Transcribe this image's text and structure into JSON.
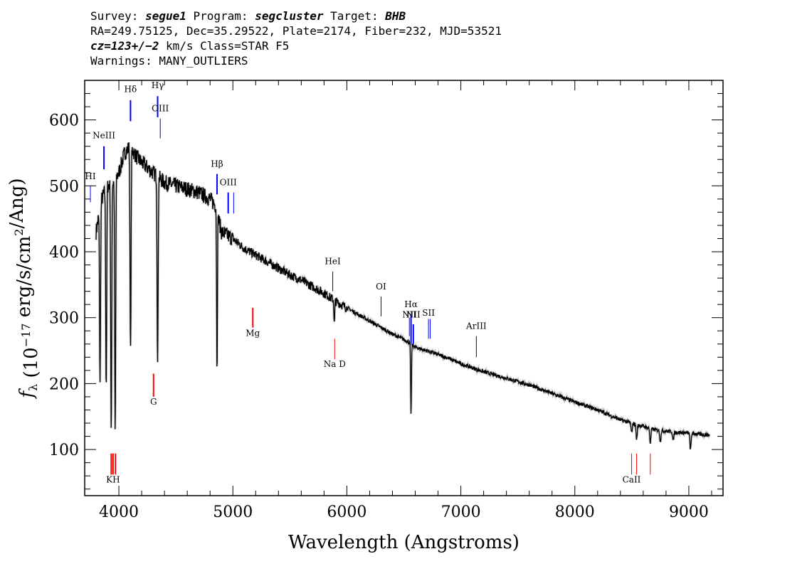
{
  "header": {
    "line1": {
      "survey_label": "Survey: ",
      "survey": "segue1",
      "program_label": " Program: ",
      "program": "segcluster",
      "target_label": " Target: ",
      "target": "BHB"
    },
    "line2": "RA=249.75125, Dec=35.29522, Plate=2174, Fiber=232, MJD=53521",
    "line3": {
      "cz": "cz=123+/−2",
      "rest": " km/s Class=STAR F5"
    },
    "line4": "Warnings: MANY_OUTLIERS"
  },
  "chart_data": {
    "type": "line",
    "xlabel": "Wavelength (Angstroms)",
    "ylabel": "f_λ (10^-17 erg/s/cm^2/Ang)",
    "xlim": [
      3700,
      9300
    ],
    "ylim": [
      30,
      660
    ],
    "xticks": [
      4000,
      5000,
      6000,
      7000,
      8000,
      9000
    ],
    "yticks": [
      100,
      200,
      300,
      400,
      500,
      600
    ],
    "series": [
      {
        "color": "#000000",
        "continuum": [
          [
            3800,
            430
          ],
          [
            3850,
            480
          ],
          [
            3900,
            500
          ],
          [
            3950,
            505
          ],
          [
            4000,
            520
          ],
          [
            4050,
            550
          ],
          [
            4100,
            560
          ],
          [
            4150,
            545
          ],
          [
            4200,
            535
          ],
          [
            4300,
            520
          ],
          [
            4400,
            505
          ],
          [
            4500,
            500
          ],
          [
            4600,
            495
          ],
          [
            4700,
            490
          ],
          [
            4800,
            480
          ],
          [
            4850,
            470
          ],
          [
            4900,
            430
          ],
          [
            4950,
            425
          ],
          [
            5000,
            420
          ],
          [
            5100,
            405
          ],
          [
            5200,
            395
          ],
          [
            5300,
            385
          ],
          [
            5400,
            375
          ],
          [
            5500,
            365
          ],
          [
            5600,
            357
          ],
          [
            5700,
            347
          ],
          [
            5800,
            337
          ],
          [
            5900,
            325
          ],
          [
            6000,
            315
          ],
          [
            6100,
            305
          ],
          [
            6200,
            295
          ],
          [
            6300,
            285
          ],
          [
            6400,
            275
          ],
          [
            6500,
            267
          ],
          [
            6550,
            262
          ],
          [
            6600,
            255
          ],
          [
            6700,
            250
          ],
          [
            6800,
            244
          ],
          [
            6900,
            238
          ],
          [
            7000,
            230
          ],
          [
            7200,
            218
          ],
          [
            7400,
            208
          ],
          [
            7600,
            198
          ],
          [
            7800,
            185
          ],
          [
            8000,
            172
          ],
          [
            8200,
            160
          ],
          [
            8400,
            145
          ],
          [
            8500,
            140
          ],
          [
            8600,
            135
          ],
          [
            8700,
            130
          ],
          [
            8800,
            128
          ],
          [
            8900,
            126
          ],
          [
            9000,
            125
          ],
          [
            9100,
            123
          ],
          [
            9180,
            122
          ]
        ],
        "absorption_lines": [
          {
            "x": 3835,
            "y": 205
          },
          {
            "x": 3889,
            "y": 195
          },
          {
            "x": 3933,
            "y": 120
          },
          {
            "x": 3968,
            "y": 125
          },
          {
            "x": 4102,
            "y": 245
          },
          {
            "x": 4340,
            "y": 230
          },
          {
            "x": 4861,
            "y": 225
          },
          {
            "x": 5890,
            "y": 290
          },
          {
            "x": 6563,
            "y": 155
          },
          {
            "x": 8498,
            "y": 125
          },
          {
            "x": 8542,
            "y": 115
          },
          {
            "x": 8662,
            "y": 110
          },
          {
            "x": 8750,
            "y": 112
          },
          {
            "x": 8863,
            "y": 113
          },
          {
            "x": 9015,
            "y": 100
          }
        ]
      }
    ],
    "line_markers": [
      {
        "label": "NeIII",
        "x": 3869,
        "y_top": 560,
        "y_bottom": 525,
        "label_y": 572,
        "color": "#0000ff",
        "width": 2
      },
      {
        "label": "HI",
        "x": 3750,
        "y_top": 500,
        "y_bottom": 475,
        "label_y": 510,
        "color": "#0000ff",
        "width": 1
      },
      {
        "label": "Hδ",
        "x": 4102,
        "y_top": 630,
        "y_bottom": 598,
        "label_y": 642,
        "color": "#0000ff",
        "width": 2
      },
      {
        "label": "Hγ",
        "x": 4340,
        "y_top": 636,
        "y_bottom": 604,
        "label_y": 648,
        "color": "#0000ff",
        "width": 2
      },
      {
        "label": "OIII",
        "x": 4363,
        "y_top": 602,
        "y_bottom": 572,
        "label_y": 613,
        "color": "#000099",
        "width": 1
      },
      {
        "label": "Hβ",
        "x": 4861,
        "y_top": 518,
        "y_bottom": 487,
        "label_y": 529,
        "color": "#0000ff",
        "width": 2
      },
      {
        "label": "OIII",
        "x": 4959,
        "y_top": 490,
        "y_bottom": 458,
        "label_y": 501,
        "color": "#0000ff",
        "width": 2
      },
      {
        "label": "",
        "x": 5007,
        "y_top": 490,
        "y_bottom": 458,
        "label_y": 0,
        "color": "#0000ff",
        "width": 1
      },
      {
        "label": "HeI",
        "x": 5876,
        "y_top": 370,
        "y_bottom": 340,
        "label_y": 381,
        "color": "#000099",
        "width": 1
      },
      {
        "label": "OI",
        "x": 6300,
        "y_top": 332,
        "y_bottom": 302,
        "label_y": 343,
        "color": "#000099",
        "width": 1
      },
      {
        "label": "NII",
        "x": 6548,
        "y_top": 300,
        "y_bottom": 272,
        "label_y": 300,
        "color": "#0000ff",
        "width": 1
      },
      {
        "label": "Hα",
        "x": 6563,
        "y_top": 305,
        "y_bottom": 258,
        "label_y": 316,
        "color": "#0000ff",
        "width": 2
      },
      {
        "label": "NII",
        "x": 6583,
        "y_top": 290,
        "y_bottom": 258,
        "label_y": 300,
        "color": "#0000ff",
        "width": 2
      },
      {
        "label": "SII",
        "x": 6716,
        "y_top": 298,
        "y_bottom": 268,
        "label_y": 303,
        "color": "#0000ff",
        "width": 1
      },
      {
        "label": "",
        "x": 6731,
        "y_top": 298,
        "y_bottom": 268,
        "label_y": 0,
        "color": "#0000ff",
        "width": 1
      },
      {
        "label": "ArIII",
        "x": 7136,
        "y_top": 272,
        "y_bottom": 240,
        "label_y": 283,
        "color": "#000099",
        "width": 1
      },
      {
        "label": "Mg",
        "x": 5175,
        "y_top": 315,
        "y_bottom": 285,
        "label_y": 272,
        "color": "#ff0000",
        "width": 2
      },
      {
        "label": "Na D",
        "x": 5893,
        "y_top": 268,
        "y_bottom": 237,
        "label_y": 225,
        "color": "#ff0000",
        "width": 1
      },
      {
        "label": "G",
        "x": 4304,
        "y_top": 215,
        "y_bottom": 180,
        "label_y": 168,
        "color": "#ff0000",
        "width": 2
      },
      {
        "label": "KH",
        "x": 3949,
        "y_top": 94,
        "y_bottom": 62,
        "label_y": 50,
        "color": "#ff0000",
        "width": 2
      },
      {
        "label": "",
        "x": 3970,
        "y_top": 94,
        "y_bottom": 62,
        "label_y": 0,
        "color": "#ff0000",
        "width": 2
      },
      {
        "label": "",
        "x": 3933,
        "y_top": 94,
        "y_bottom": 62,
        "label_y": 0,
        "color": "#ff0000",
        "width": 2
      },
      {
        "label": "CaII",
        "x": 8498,
        "y_top": 94,
        "y_bottom": 62,
        "label_y": 50,
        "color": "#ff0000",
        "width": 1
      },
      {
        "label": "",
        "x": 8542,
        "y_top": 94,
        "y_bottom": 62,
        "label_y": 0,
        "color": "#ff0000",
        "width": 1
      },
      {
        "label": "",
        "x": 8662,
        "y_top": 94,
        "y_bottom": 62,
        "label_y": 0,
        "color": "#ff0000",
        "width": 1
      }
    ]
  }
}
